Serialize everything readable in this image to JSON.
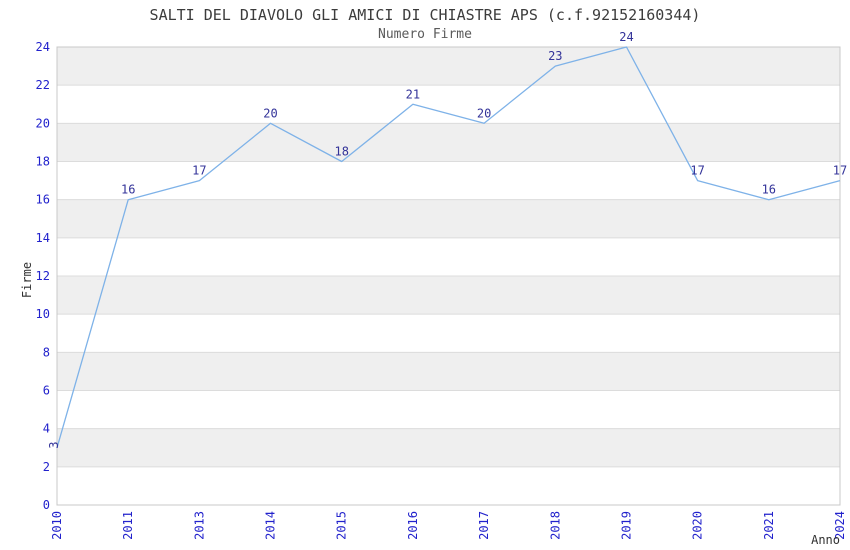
{
  "chart_data": {
    "type": "line",
    "title": "SALTI DEL DIAVOLO GLI AMICI DI CHIASTRE APS (c.f.92152160344)",
    "subtitle": "Numero Firme",
    "xlabel": "Anno",
    "ylabel": "Firme",
    "categories": [
      "2010",
      "2011",
      "2013",
      "2014",
      "2015",
      "2016",
      "2017",
      "2018",
      "2019",
      "2020",
      "2021",
      "2024"
    ],
    "values": [
      3,
      16,
      17,
      20,
      18,
      21,
      20,
      23,
      24,
      17,
      16,
      17
    ],
    "ylim": [
      0,
      24
    ],
    "ytick_step": 2,
    "yticks": [
      0,
      2,
      4,
      6,
      8,
      10,
      12,
      14,
      16,
      18,
      20,
      22,
      24
    ],
    "grid": "horizontal-striped-bands",
    "legend_position": "none",
    "marker": "none",
    "colors": {
      "line": "#7EB2E8",
      "tick_label": "#2222CC",
      "data_label": "#333399",
      "band_gray": "#EFEFEF",
      "band_white": "#FFFFFF",
      "grid_line": "#DCDCDC",
      "plot_border": "#C8C8C8",
      "title": "#3C3C3C",
      "subtitle": "#5A5A5A",
      "axis_label": "#303030"
    }
  }
}
